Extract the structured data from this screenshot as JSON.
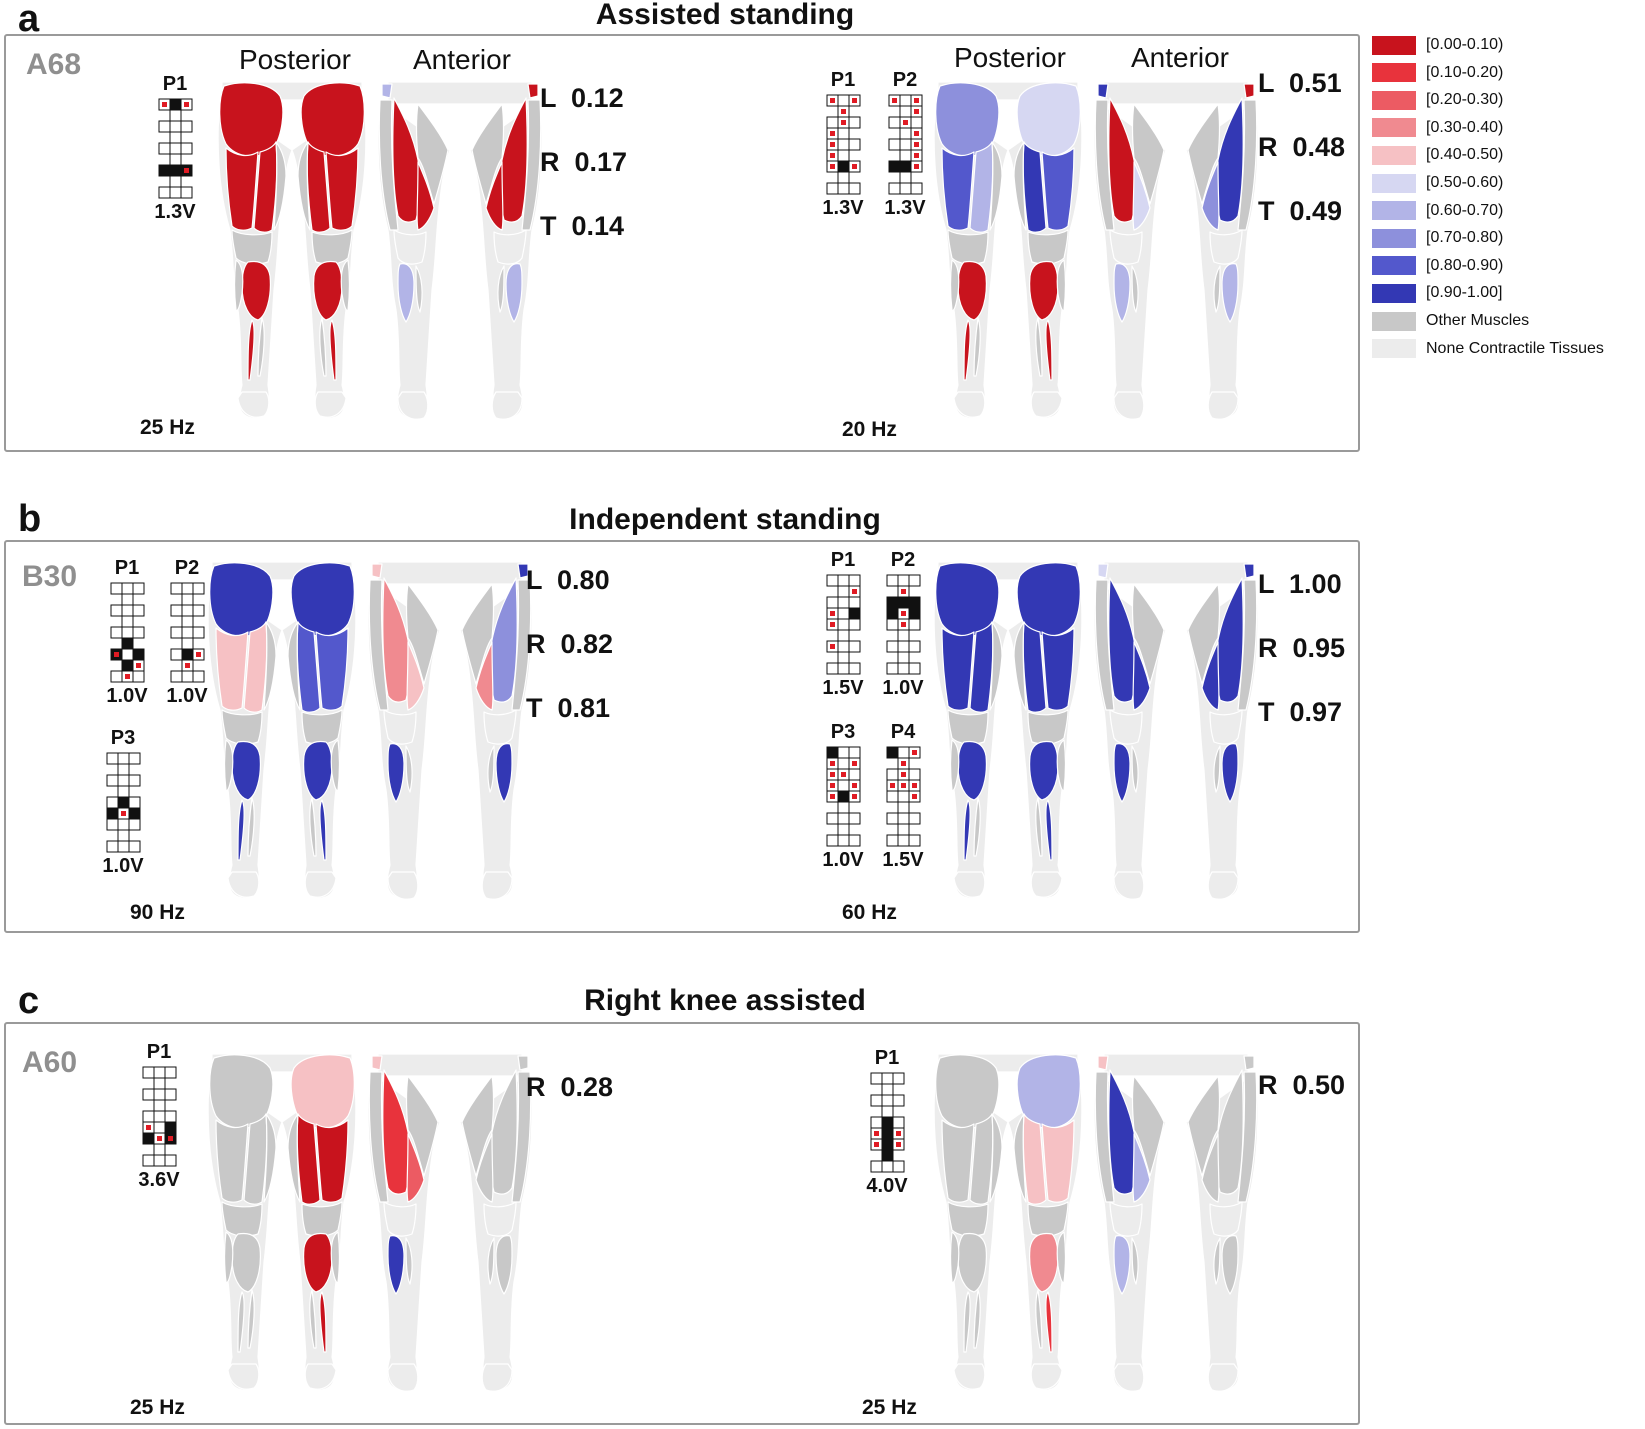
{
  "colors": {
    "c00": "#c8131d",
    "c01": "#e8333c",
    "c02": "#ec5b63",
    "c03": "#f08a90",
    "c04": "#f6c1c4",
    "c05": "#d6d7f2",
    "c06": "#b2b4e7",
    "c07": "#8d90dc",
    "c08": "#5358cc",
    "c09": "#3338b4",
    "other": "#c8c8c8",
    "none": "#ececec",
    "line": "#ffffff"
  },
  "legend": [
    {
      "label": "[0.00-0.10)",
      "color": "c00"
    },
    {
      "label": "[0.10-0.20)",
      "color": "c01"
    },
    {
      "label": "[0.20-0.30)",
      "color": "c02"
    },
    {
      "label": "[0.30-0.40)",
      "color": "c03"
    },
    {
      "label": "[0.40-0.50)",
      "color": "c04"
    },
    {
      "label": "[0.50-0.60)",
      "color": "c05"
    },
    {
      "label": "[0.60-0.70)",
      "color": "c06"
    },
    {
      "label": "[0.70-0.80)",
      "color": "c07"
    },
    {
      "label": "[0.80-0.90)",
      "color": "c08"
    },
    {
      "label": "[0.90-1.00]",
      "color": "c09"
    },
    {
      "label": "Other Muscles",
      "color": "other"
    },
    {
      "label": "None Contractile Tissues",
      "color": "none"
    }
  ],
  "panels": {
    "a": {
      "letter": "a",
      "title": "Assisted standing",
      "subject": "A68",
      "view_posterior": "Posterior",
      "view_anterior": "Anterior",
      "left": {
        "freq": "25 Hz",
        "grids": [
          {
            "label": "P1",
            "voltage": "1.3V",
            "red": [
              0,
              2,
              20
            ],
            "black": [
              1,
              18,
              19,
              20
            ]
          }
        ],
        "lrt": [
          {
            "k": "L",
            "v": "0.12"
          },
          {
            "k": "R",
            "v": "0.17"
          },
          {
            "k": "T",
            "v": "0.14"
          }
        ],
        "muscles": {
          "glute_L": "c00",
          "glute_R": "c00",
          "hamL_L": "c00",
          "hamM_L": "c00",
          "hamL_R": "c00",
          "hamM_R": "c00",
          "calf_L": "c00",
          "calf_R": "c00",
          "sol_L": "c00",
          "sol_R": "c00",
          "tfl_L": "c06",
          "tfl_R": "c00",
          "add_L": "other",
          "add_R": "other",
          "quad_L": "c00",
          "quad_R": "c00",
          "quadM_L": "c00",
          "quadM_R": "c00",
          "tib_L": "c06",
          "tib_R": "c06"
        }
      },
      "right": {
        "freq": "20 Hz",
        "grids": [
          {
            "label": "P1",
            "voltage": "1.3V",
            "red": [
              0,
              2,
              4,
              7,
              9,
              12,
              15,
              18,
              20
            ],
            "black": [
              19
            ]
          },
          {
            "label": "P2",
            "voltage": "1.3V",
            "red": [
              0,
              2,
              5,
              7,
              11,
              14,
              17,
              20
            ],
            "black": [
              18,
              19
            ]
          }
        ],
        "lrt": [
          {
            "k": "L",
            "v": "0.51"
          },
          {
            "k": "R",
            "v": "0.48"
          },
          {
            "k": "T",
            "v": "0.49"
          }
        ],
        "muscles": {
          "glute_L": "c07",
          "glute_R": "c05",
          "hamL_L": "c08",
          "hamM_L": "c06",
          "hamL_R": "c08",
          "hamM_R": "c09",
          "calf_L": "c00",
          "calf_R": "c00",
          "sol_L": "c00",
          "sol_R": "c00",
          "tfl_L": "c09",
          "tfl_R": "c00",
          "add_L": "other",
          "add_R": "other",
          "quad_L": "c00",
          "quad_R": "c09",
          "quadM_L": "c05",
          "quadM_R": "c07",
          "tib_L": "c06",
          "tib_R": "c06"
        }
      }
    },
    "b": {
      "letter": "b",
      "title": "Independent standing",
      "subject": "B30",
      "left": {
        "freq": "90 Hz",
        "grids": [
          {
            "label": "P1",
            "voltage": "1.0V",
            "red": [
              18,
              23,
              25
            ],
            "black": [
              16,
              18,
              20,
              22
            ]
          },
          {
            "label": "P2",
            "voltage": "1.0V",
            "red": [
              20,
              22
            ],
            "black": [
              19
            ]
          },
          {
            "label": "P3",
            "voltage": "1.0V",
            "red": [
              16
            ],
            "black": [
              13,
              15,
              17
            ]
          }
        ],
        "lrt": [
          {
            "k": "L",
            "v": "0.80"
          },
          {
            "k": "R",
            "v": "0.82"
          },
          {
            "k": "T",
            "v": "0.81"
          }
        ],
        "muscles": {
          "glute_L": "c09",
          "glute_R": "c09",
          "hamL_L": "c04",
          "hamM_L": "c04",
          "hamL_R": "c08",
          "hamM_R": "c08",
          "calf_L": "c09",
          "calf_R": "c09",
          "sol_L": "c09",
          "sol_R": "c09",
          "tfl_L": "c04",
          "tfl_R": "c09",
          "add_L": "other",
          "add_R": "other",
          "quad_L": "c03",
          "quad_R": "c07",
          "quadM_L": "c04",
          "quadM_R": "c03",
          "tib_L": "c09",
          "tib_R": "c09"
        }
      },
      "right": {
        "freq": "60 Hz",
        "grids": [
          {
            "label": "P1",
            "voltage": "1.5V",
            "red": [
              5,
              9,
              12,
              18
            ],
            "black": [
              11
            ]
          },
          {
            "label": "P2",
            "voltage": "1.0V",
            "red": [
              4,
              10,
              13
            ],
            "black": [
              6,
              7,
              8,
              9,
              11
            ]
          },
          {
            "label": "P3",
            "voltage": "1.0V",
            "red": [
              3,
              5,
              6,
              7,
              9,
              11,
              12,
              14
            ],
            "black": [
              0,
              13
            ]
          },
          {
            "label": "P4",
            "voltage": "1.5V",
            "red": [
              2,
              4,
              7,
              9,
              10,
              11,
              14
            ],
            "black": [
              0
            ]
          }
        ],
        "lrt": [
          {
            "k": "L",
            "v": "1.00"
          },
          {
            "k": "R",
            "v": "0.95"
          },
          {
            "k": "T",
            "v": "0.97"
          }
        ],
        "muscles": {
          "glute_L": "c09",
          "glute_R": "c09",
          "hamL_L": "c09",
          "hamM_L": "c09",
          "hamL_R": "c09",
          "hamM_R": "c09",
          "calf_L": "c09",
          "calf_R": "c09",
          "sol_L": "c09",
          "sol_R": "c09",
          "tfl_L": "c05",
          "tfl_R": "c09",
          "add_L": "other",
          "add_R": "other",
          "quad_L": "c09",
          "quad_R": "c09",
          "quadM_L": "c09",
          "quadM_R": "c09",
          "tib_L": "c09",
          "tib_R": "c09"
        }
      }
    },
    "c": {
      "letter": "c",
      "title": "Right knee assisted",
      "subject": "A60",
      "left": {
        "freq": "25 Hz",
        "grids": [
          {
            "label": "P1",
            "voltage": "3.6V",
            "red": [
              15,
              19,
              20
            ],
            "black": [
              17,
              18,
              20
            ]
          }
        ],
        "lrt": [
          {
            "k": "R",
            "v": "0.28"
          }
        ],
        "muscles": {
          "glute_L": "other",
          "glute_R": "c04",
          "hamL_L": "other",
          "hamM_L": "other",
          "hamL_R": "c00",
          "hamM_R": "c00",
          "calf_L": "other",
          "calf_R": "c00",
          "sol_L": "other",
          "sol_R": "c00",
          "tfl_L": "c04",
          "tfl_R": "other",
          "add_L": "other",
          "add_R": "other",
          "quad_L": "c01",
          "quad_R": "other",
          "quadM_L": "c02",
          "quadM_R": "other",
          "tib_L": "c09",
          "tib_R": "other"
        }
      },
      "right": {
        "freq": "25 Hz",
        "grids": [
          {
            "label": "P1",
            "voltage": "4.0V",
            "red": [
              15,
              17,
              18,
              20
            ],
            "black": [
              13,
              16,
              19,
              22
            ]
          }
        ],
        "lrt": [
          {
            "k": "R",
            "v": "0.50"
          }
        ],
        "muscles": {
          "glute_L": "other",
          "glute_R": "c06",
          "hamL_L": "other",
          "hamM_L": "other",
          "hamL_R": "c04",
          "hamM_R": "c04",
          "calf_L": "other",
          "calf_R": "c03",
          "sol_L": "other",
          "sol_R": "c01",
          "tfl_L": "c04",
          "tfl_R": "other",
          "add_L": "other",
          "add_R": "other",
          "quad_L": "c09",
          "quad_R": "other",
          "quadM_L": "c06",
          "quadM_R": "other",
          "tib_L": "c06",
          "tib_R": "other"
        }
      }
    }
  }
}
